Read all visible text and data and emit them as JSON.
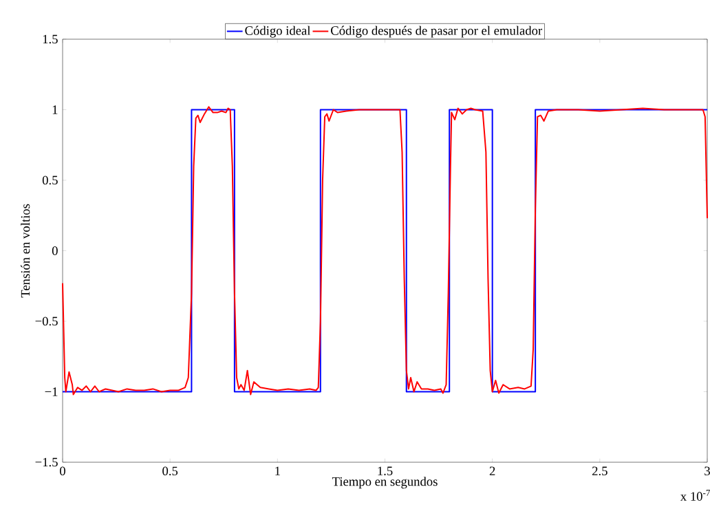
{
  "chart_data": {
    "type": "line",
    "xlabel": "Tiempo en segundos",
    "ylabel": "Tensión en voltios",
    "annotations": [
      "x 10$^{-7}$"
    ],
    "xlim": [
      0,
      3
    ],
    "ylim": [
      -1.5,
      1.5
    ],
    "xticks": [
      0,
      0.5,
      1,
      1.5,
      2,
      2.5,
      3
    ],
    "yticks": [
      {
        "value": -1.5,
        "label": "−1.5"
      },
      {
        "value": -1,
        "label": "−1"
      },
      {
        "value": -0.5,
        "label": "−0.5"
      },
      0,
      0.5,
      1,
      1.5
    ],
    "legend": "top",
    "line_style": "solid",
    "series": [
      {
        "name": "Código ideal",
        "color": "#0000ff",
        "x": [
          0,
          0.6,
          0.6,
          0.8,
          0.8,
          1.2,
          1.2,
          1.6,
          1.6,
          1.8,
          1.8,
          2.0,
          2.0,
          2.2,
          2.2,
          3.0
        ],
        "values": [
          -1,
          -1,
          1,
          1,
          -1,
          -1,
          1,
          1,
          -1,
          -1,
          1,
          1,
          -1,
          -1,
          1,
          1
        ]
      },
      {
        "name": "Código después de pasar por el emulador",
        "color": "#ff0000",
        "x": [
          0,
          0.01,
          0.015,
          0.03,
          0.045,
          0.05,
          0.07,
          0.09,
          0.11,
          0.13,
          0.15,
          0.17,
          0.2,
          0.23,
          0.26,
          0.3,
          0.34,
          0.38,
          0.42,
          0.46,
          0.5,
          0.54,
          0.57,
          0.585,
          0.6,
          0.61,
          0.62,
          0.63,
          0.64,
          0.66,
          0.68,
          0.7,
          0.72,
          0.74,
          0.76,
          0.77,
          0.78,
          0.79,
          0.8,
          0.81,
          0.82,
          0.83,
          0.845,
          0.86,
          0.875,
          0.89,
          0.92,
          0.96,
          1.0,
          1.05,
          1.1,
          1.15,
          1.18,
          1.19,
          1.2,
          1.21,
          1.22,
          1.23,
          1.24,
          1.26,
          1.28,
          1.32,
          1.38,
          1.44,
          1.5,
          1.55,
          1.57,
          1.58,
          1.59,
          1.6,
          1.61,
          1.62,
          1.635,
          1.65,
          1.67,
          1.7,
          1.73,
          1.76,
          1.77,
          1.785,
          1.795,
          1.805,
          1.81,
          1.825,
          1.84,
          1.86,
          1.88,
          1.9,
          1.92,
          1.955,
          1.97,
          1.98,
          1.99,
          2.0,
          2.015,
          2.03,
          2.05,
          2.08,
          2.12,
          2.15,
          2.18,
          2.19,
          2.2,
          2.21,
          2.225,
          2.24,
          2.26,
          2.3,
          2.4,
          2.5,
          2.6,
          2.7,
          2.8,
          2.9,
          2.98,
          2.99,
          3.0
        ],
        "values": [
          -0.23,
          -0.9,
          -1.0,
          -0.86,
          -0.95,
          -1.02,
          -0.97,
          -0.99,
          -0.96,
          -1.0,
          -0.96,
          -1.0,
          -0.98,
          -0.99,
          -1.0,
          -0.98,
          -0.99,
          -0.99,
          -0.98,
          -1.0,
          -0.99,
          -0.99,
          -0.97,
          -0.9,
          -0.3,
          0.6,
          0.94,
          0.96,
          0.91,
          0.97,
          1.02,
          0.98,
          0.98,
          0.99,
          0.98,
          1.01,
          1.0,
          0.6,
          -0.3,
          -0.9,
          -0.98,
          -0.95,
          -0.99,
          -0.85,
          -1.02,
          -0.93,
          -0.97,
          -0.98,
          -0.99,
          -0.98,
          -0.99,
          -0.98,
          -0.99,
          -0.97,
          -0.5,
          0.5,
          0.95,
          0.97,
          0.92,
          1.0,
          0.98,
          0.99,
          1.0,
          1.0,
          1.0,
          1.0,
          1.0,
          0.7,
          -0.2,
          -0.85,
          -0.98,
          -0.9,
          -1.0,
          -0.93,
          -0.98,
          -0.98,
          -0.99,
          -0.98,
          -1.01,
          -0.95,
          -0.3,
          0.6,
          0.98,
          0.93,
          1.01,
          0.97,
          1.0,
          1.01,
          1.0,
          0.99,
          0.7,
          -0.2,
          -0.85,
          -1.0,
          -0.92,
          -1.01,
          -0.95,
          -0.98,
          -0.97,
          -0.98,
          -0.96,
          -0.7,
          0.3,
          0.95,
          0.96,
          0.92,
          0.99,
          1.0,
          1.0,
          0.99,
          1.0,
          1.01,
          1.0,
          1.0,
          1.0,
          0.95,
          0.23
        ]
      }
    ]
  }
}
